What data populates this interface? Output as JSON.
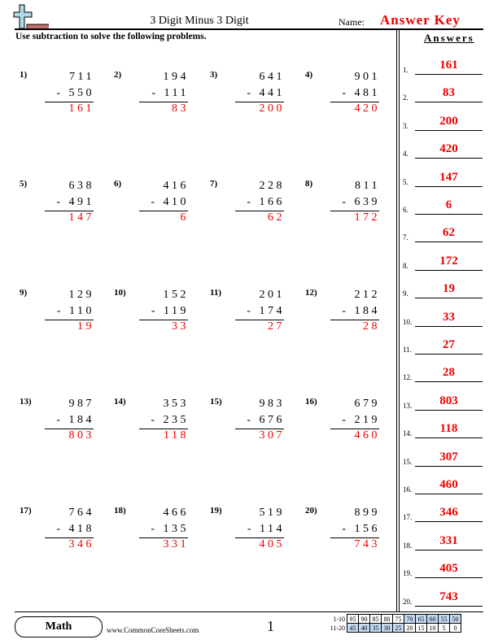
{
  "header": {
    "title": "3 Digit Minus 3 Digit",
    "name_label": "Name:",
    "name_value": "Answer Key",
    "instructions": "Use subtraction to solve the following problems.",
    "answers_heading": "Answers"
  },
  "problems": [
    {
      "n": "1)",
      "top": "711",
      "bottom": "- 550",
      "answer": "161"
    },
    {
      "n": "2)",
      "top": "194",
      "bottom": "- 111",
      "answer": "83"
    },
    {
      "n": "3)",
      "top": "641",
      "bottom": "- 441",
      "answer": "200"
    },
    {
      "n": "4)",
      "top": "901",
      "bottom": "- 481",
      "answer": "420"
    },
    {
      "n": "5)",
      "top": "638",
      "bottom": "- 491",
      "answer": "147"
    },
    {
      "n": "6)",
      "top": "416",
      "bottom": "- 410",
      "answer": "6"
    },
    {
      "n": "7)",
      "top": "228",
      "bottom": "- 166",
      "answer": "62"
    },
    {
      "n": "8)",
      "top": "811",
      "bottom": "- 639",
      "answer": "172"
    },
    {
      "n": "9)",
      "top": "129",
      "bottom": "- 110",
      "answer": "19"
    },
    {
      "n": "10)",
      "top": "152",
      "bottom": "- 119",
      "answer": "33"
    },
    {
      "n": "11)",
      "top": "201",
      "bottom": "- 174",
      "answer": "27"
    },
    {
      "n": "12)",
      "top": "212",
      "bottom": "- 184",
      "answer": "28"
    },
    {
      "n": "13)",
      "top": "987",
      "bottom": "- 184",
      "answer": "803"
    },
    {
      "n": "14)",
      "top": "353",
      "bottom": "- 235",
      "answer": "118"
    },
    {
      "n": "15)",
      "top": "983",
      "bottom": "- 676",
      "answer": "307"
    },
    {
      "n": "16)",
      "top": "679",
      "bottom": "- 219",
      "answer": "460"
    },
    {
      "n": "17)",
      "top": "764",
      "bottom": "- 418",
      "answer": "346"
    },
    {
      "n": "18)",
      "top": "466",
      "bottom": "- 135",
      "answer": "331"
    },
    {
      "n": "19)",
      "top": "519",
      "bottom": "- 114",
      "answer": "405"
    },
    {
      "n": "20)",
      "top": "899",
      "bottom": "- 156",
      "answer": "743"
    }
  ],
  "answer_key": [
    {
      "n": "1.",
      "v": "161"
    },
    {
      "n": "2.",
      "v": "83"
    },
    {
      "n": "3.",
      "v": "200"
    },
    {
      "n": "4.",
      "v": "420"
    },
    {
      "n": "5.",
      "v": "147"
    },
    {
      "n": "6.",
      "v": "6"
    },
    {
      "n": "7.",
      "v": "62"
    },
    {
      "n": "8.",
      "v": "172"
    },
    {
      "n": "9.",
      "v": "19"
    },
    {
      "n": "10.",
      "v": "33"
    },
    {
      "n": "11.",
      "v": "27"
    },
    {
      "n": "12.",
      "v": "28"
    },
    {
      "n": "13.",
      "v": "803"
    },
    {
      "n": "14.",
      "v": "118"
    },
    {
      "n": "15.",
      "v": "307"
    },
    {
      "n": "16.",
      "v": "460"
    },
    {
      "n": "17.",
      "v": "346"
    },
    {
      "n": "18.",
      "v": "331"
    },
    {
      "n": "19.",
      "v": "405"
    },
    {
      "n": "20.",
      "v": "743"
    }
  ],
  "footer": {
    "subject": "Math",
    "site": "www.CommonCoreSheets.com",
    "page": "1"
  },
  "score_table": {
    "rows": [
      {
        "label": "1-10",
        "cells": [
          "95",
          "90",
          "85",
          "80",
          "75",
          "70",
          "65",
          "60",
          "55",
          "50"
        ]
      },
      {
        "label": "11-20",
        "cells": [
          "45",
          "40",
          "35",
          "30",
          "25",
          "20",
          "15",
          "10",
          "5",
          "0"
        ]
      }
    ]
  },
  "colors": {
    "answer": "#ee0000",
    "highlight": "#c6dcf5",
    "logo_plus": "#add8e6",
    "logo_minus": "#c07070"
  }
}
